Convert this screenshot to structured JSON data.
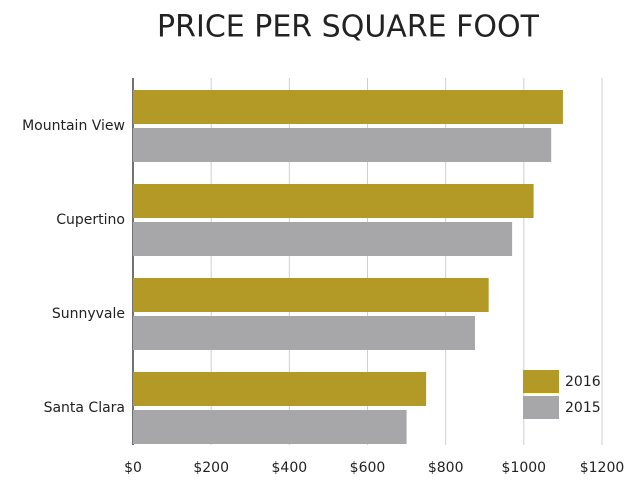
{
  "chart_data": {
    "type": "barh",
    "title": "PRICE PER SQUARE FOOT",
    "categories": [
      "Mountain View",
      "Cupertino",
      "Sunnyvale",
      "Santa Clara"
    ],
    "series": [
      {
        "name": "2016",
        "color": "#b39a27",
        "values": [
          1100,
          1025,
          910,
          750
        ]
      },
      {
        "name": "2015",
        "color": "#a7a7aa",
        "values": [
          1070,
          970,
          875,
          700
        ]
      }
    ],
    "xlim": [
      0,
      1200
    ],
    "xticks": [
      {
        "value": 0,
        "label": "$0"
      },
      {
        "value": 200,
        "label": "$200"
      },
      {
        "value": 400,
        "label": "$400"
      },
      {
        "value": 600,
        "label": "$600"
      },
      {
        "value": 800,
        "label": "$800"
      },
      {
        "value": 1000,
        "label": "$1000"
      },
      {
        "value": 1200,
        "label": "$1200"
      }
    ],
    "grid": true,
    "legend": "lower right"
  }
}
